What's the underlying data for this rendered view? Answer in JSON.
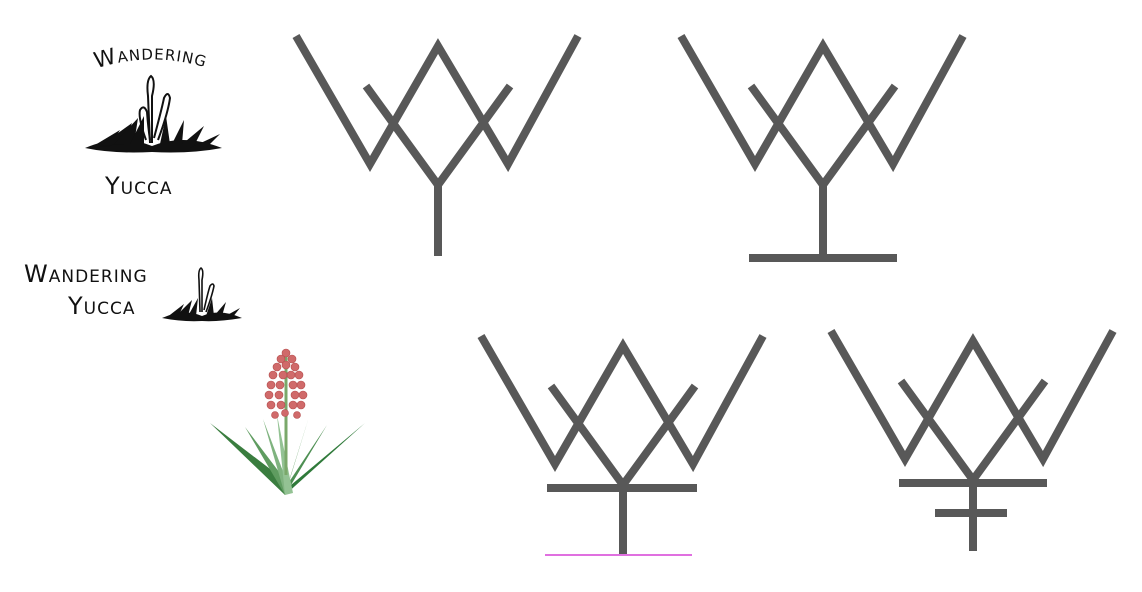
{
  "logos": {
    "stacked": {
      "line1": "Wandering",
      "line2": "Yucca"
    },
    "horizontal": {
      "line1": "Wandering",
      "line2": "Yucca"
    }
  },
  "icons": {
    "stacked_logo_plant": "yucca-grass-icon",
    "horizontal_logo_plant": "yucca-grass-icon",
    "illustration": "yucca-flower-illustration",
    "monogram": "ww-monogram-icon"
  },
  "colors": {
    "mark": "#585858",
    "ink": "#111111",
    "leaf_dark": "#2f7a3a",
    "leaf_light": "#7fb37f",
    "flower": "#d06a6a",
    "guide": "#e070e0"
  }
}
